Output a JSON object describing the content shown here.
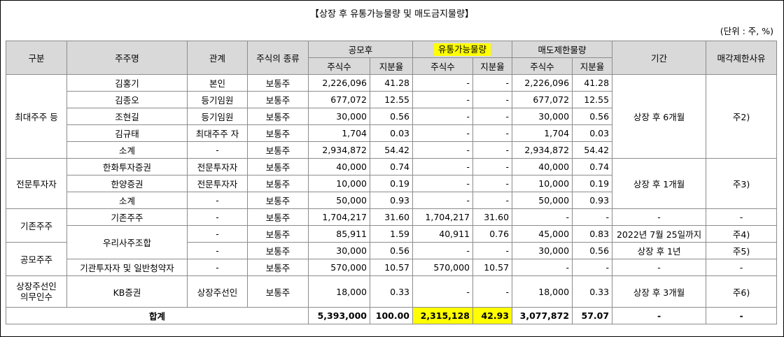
{
  "title": "【상장 후 유통가능물량 및 매도금지물량】",
  "unit_note": "(단위 : 주, %)",
  "headers": {
    "category": "구분",
    "holder": "주주명",
    "relation": "관계",
    "share_type": "주식의 종류",
    "post_ipo": "공모후",
    "tradable": "유통가능물량",
    "restricted": "매도제한물량",
    "period": "기간",
    "reason": "매각제한사유",
    "shares": "주식수",
    "ratio": "지분율"
  },
  "rows": [
    {
      "holder": "김홍기",
      "relation": "본인",
      "type": "보통주",
      "post_shares": "2,226,096",
      "post_ratio": "41.28",
      "trad_shares": "-",
      "trad_ratio": "-",
      "rest_shares": "2,226,096",
      "rest_ratio": "41.28"
    },
    {
      "holder": "김종오",
      "relation": "등기임원",
      "type": "보통주",
      "post_shares": "677,072",
      "post_ratio": "12.55",
      "trad_shares": "-",
      "trad_ratio": "-",
      "rest_shares": "677,072",
      "rest_ratio": "12.55"
    },
    {
      "holder": "조현길",
      "relation": "등기임원",
      "type": "보통주",
      "post_shares": "30,000",
      "post_ratio": "0.56",
      "trad_shares": "-",
      "trad_ratio": "-",
      "rest_shares": "30,000",
      "rest_ratio": "0.56"
    },
    {
      "holder": "김규태",
      "relation": "최대주주 자",
      "type": "보통주",
      "post_shares": "1,704",
      "post_ratio": "0.03",
      "trad_shares": "-",
      "trad_ratio": "-",
      "rest_shares": "1,704",
      "rest_ratio": "0.03"
    },
    {
      "holder": "소계",
      "relation": "-",
      "type": "보통주",
      "post_shares": "2,934,872",
      "post_ratio": "54.42",
      "trad_shares": "-",
      "trad_ratio": "-",
      "rest_shares": "2,934,872",
      "rest_ratio": "54.42"
    },
    {
      "holder": "한화투자증권",
      "relation": "전문투자자",
      "type": "보통주",
      "post_shares": "40,000",
      "post_ratio": "0.74",
      "trad_shares": "-",
      "trad_ratio": "-",
      "rest_shares": "40,000",
      "rest_ratio": "0.74"
    },
    {
      "holder": "한양증권",
      "relation": "전문투자자",
      "type": "보통주",
      "post_shares": "10,000",
      "post_ratio": "0.19",
      "trad_shares": "-",
      "trad_ratio": "-",
      "rest_shares": "10,000",
      "rest_ratio": "0.19"
    },
    {
      "holder": "소계",
      "relation": "-",
      "type": "보통주",
      "post_shares": "50,000",
      "post_ratio": "0.93",
      "trad_shares": "-",
      "trad_ratio": "-",
      "rest_shares": "50,000",
      "rest_ratio": "0.93"
    },
    {
      "holder": "기존주주",
      "relation": "-",
      "type": "보통주",
      "post_shares": "1,704,217",
      "post_ratio": "31.60",
      "trad_shares": "1,704,217",
      "trad_ratio": "31.60",
      "rest_shares": "-",
      "rest_ratio": "-",
      "period": "-",
      "reason": "-"
    },
    {
      "holder": "우리사주조합",
      "relation": "-",
      "type": "보통주",
      "post_shares": "85,911",
      "post_ratio": "1.59",
      "trad_shares": "40,911",
      "trad_ratio": "0.76",
      "rest_shares": "45,000",
      "rest_ratio": "0.83",
      "period": "2022년 7월 25일까지",
      "reason": "주4)"
    },
    {
      "relation": "-",
      "type": "보통주",
      "post_shares": "30,000",
      "post_ratio": "0.56",
      "trad_shares": "-",
      "trad_ratio": "-",
      "rest_shares": "30,000",
      "rest_ratio": "0.56",
      "period": "상장 후 1년",
      "reason": "주5)"
    },
    {
      "holder": "기관투자자 및 일반청약자",
      "relation": "-",
      "type": "보통주",
      "post_shares": "570,000",
      "post_ratio": "10.57",
      "trad_shares": "570,000",
      "trad_ratio": "10.57",
      "rest_shares": "-",
      "rest_ratio": "-",
      "period": "-",
      "reason": "-"
    },
    {
      "holder": "KB증권",
      "relation": "상장주선인",
      "type": "보통주",
      "post_shares": "18,000",
      "post_ratio": "0.33",
      "trad_shares": "-",
      "trad_ratio": "-",
      "rest_shares": "18,000",
      "rest_ratio": "0.33",
      "period": "상장 후 3개월",
      "reason": "주6)"
    }
  ],
  "groups": {
    "largest": "최대주주 등",
    "professional": "전문투자자",
    "existing": "기존주주",
    "public": "공모주주",
    "underwriter_l1": "상장주선인",
    "underwriter_l2": "의무인수"
  },
  "merged": {
    "largest_period": "상장 후 6개월",
    "largest_reason": "주2)",
    "pro_period": "상장 후 1개월",
    "pro_reason": "주3)"
  },
  "total": {
    "label": "합계",
    "post_shares": "5,393,000",
    "post_ratio": "100.00",
    "trad_shares": "2,315,128",
    "trad_ratio": "42.93",
    "rest_shares": "3,077,872",
    "rest_ratio": "57.07",
    "period": "-",
    "reason": "-"
  },
  "highlight_color": "#ffff00",
  "header_bg": "#d9d9d9"
}
